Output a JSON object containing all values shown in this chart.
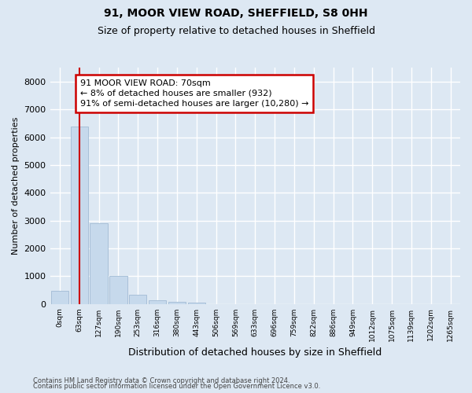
{
  "title1": "91, MOOR VIEW ROAD, SHEFFIELD, S8 0HH",
  "title2": "Size of property relative to detached houses in Sheffield",
  "xlabel": "Distribution of detached houses by size in Sheffield",
  "ylabel": "Number of detached properties",
  "footnote1": "Contains HM Land Registry data © Crown copyright and database right 2024.",
  "footnote2": "Contains public sector information licensed under the Open Government Licence v3.0.",
  "bar_labels": [
    "0sqm",
    "63sqm",
    "127sqm",
    "190sqm",
    "253sqm",
    "316sqm",
    "380sqm",
    "443sqm",
    "506sqm",
    "569sqm",
    "633sqm",
    "696sqm",
    "759sqm",
    "822sqm",
    "886sqm",
    "949sqm",
    "1012sqm",
    "1075sqm",
    "1139sqm",
    "1202sqm",
    "1265sqm"
  ],
  "bar_values": [
    480,
    6400,
    2900,
    1000,
    330,
    140,
    80,
    55,
    0,
    0,
    0,
    0,
    0,
    0,
    0,
    0,
    0,
    0,
    0,
    0,
    0
  ],
  "bar_color": "#c6d9ec",
  "bar_edgecolor": "#a8c0d8",
  "ylim": [
    0,
    8500
  ],
  "yticks": [
    0,
    1000,
    2000,
    3000,
    4000,
    5000,
    6000,
    7000,
    8000
  ],
  "vline_x": 1.0,
  "vline_color": "#cc0000",
  "annotation_text": "91 MOOR VIEW ROAD: 70sqm\n← 8% of detached houses are smaller (932)\n91% of semi-detached houses are larger (10,280) →",
  "annotation_box_color": "#cc0000",
  "background_color": "#dde8f3",
  "grid_color": "#ffffff"
}
